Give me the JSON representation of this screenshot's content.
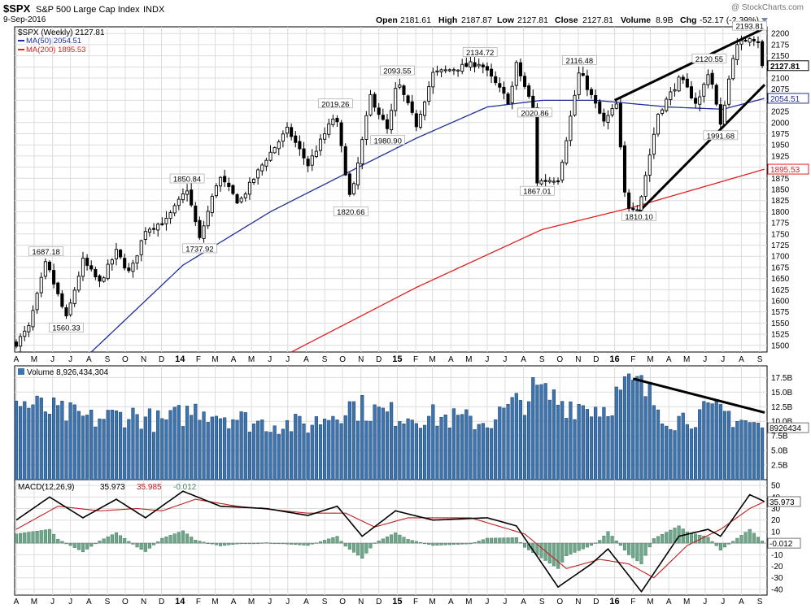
{
  "header": {
    "symbol": "$SPX",
    "name": "S&P 500 Large Cap Index",
    "exchange": "INDX",
    "date": "9-Sep-2016",
    "watermark": "@ StockCharts.com",
    "quote": {
      "open_label": "Open",
      "open": "2181.61",
      "high_label": "High",
      "high": "2187.87",
      "low_label": "Low",
      "low": "2127.81",
      "close_label": "Close",
      "close": "2127.81",
      "volume_label": "Volume",
      "volume": "8.9B",
      "chg_label": "Chg",
      "chg": "-52.17 (-2.39%)"
    }
  },
  "legend": {
    "main": "$SPX (Weekly) 2127.81",
    "ma50": "MA(50) 2054.51",
    "ma200": "MA(200) 1895.53"
  },
  "colors": {
    "grid": "#dcdcdc",
    "price": "#000000",
    "ma50": "#1f2f9a",
    "ma200": "#e02020",
    "volume": "#3c74b0",
    "macd": "#000000",
    "signal": "#c02020",
    "histogram": "#6ea88a",
    "trendline": "#000000"
  },
  "chart_data": [
    {
      "type": "candlestick",
      "title": "$SPX (Weekly) 2127.81",
      "y_ticks": [
        "1500",
        "1525",
        "1550",
        "1575",
        "1600",
        "1625",
        "1650",
        "1675",
        "1700",
        "1725",
        "1750",
        "1775",
        "1800",
        "1825",
        "1850",
        "1875",
        "1900",
        "1925",
        "1950",
        "1975",
        "2000",
        "2025",
        "2050",
        "2075",
        "2100",
        "2125",
        "2150",
        "2175",
        "2200"
      ],
      "ylim": [
        1485,
        2215
      ],
      "x_period": [
        "2013-04-01",
        "2016-09-09"
      ],
      "price_anchors": [
        {
          "d": "2013-04-01",
          "v": 1505
        },
        {
          "d": "2013-04-22",
          "v": 1540
        },
        {
          "d": "2013-05-21",
          "v": 1687.18
        },
        {
          "d": "2013-06-24",
          "v": 1560.33
        },
        {
          "d": "2013-07-22",
          "v": 1690
        },
        {
          "d": "2013-08-19",
          "v": 1640
        },
        {
          "d": "2013-09-16",
          "v": 1710
        },
        {
          "d": "2013-10-09",
          "v": 1660
        },
        {
          "d": "2013-11-04",
          "v": 1760
        },
        {
          "d": "2013-12-09",
          "v": 1780
        },
        {
          "d": "2014-01-13",
          "v": 1850.84
        },
        {
          "d": "2014-02-03",
          "v": 1737.92
        },
        {
          "d": "2014-03-07",
          "v": 1880
        },
        {
          "d": "2014-04-10",
          "v": 1820
        },
        {
          "d": "2014-05-26",
          "v": 1920
        },
        {
          "d": "2014-07-01",
          "v": 1985
        },
        {
          "d": "2014-08-04",
          "v": 1905
        },
        {
          "d": "2014-09-19",
          "v": 2019.26
        },
        {
          "d": "2014-10-15",
          "v": 1820.66
        },
        {
          "d": "2014-11-17",
          "v": 2060
        },
        {
          "d": "2014-12-16",
          "v": 1980.9
        },
        {
          "d": "2015-01-01",
          "v": 2093.55
        },
        {
          "d": "2015-02-02",
          "v": 1995
        },
        {
          "d": "2015-03-02",
          "v": 2110
        },
        {
          "d": "2015-05-20",
          "v": 2134.72
        },
        {
          "d": "2015-07-08",
          "v": 2045
        },
        {
          "d": "2015-07-20",
          "v": 2130
        },
        {
          "d": "2015-08-20",
          "v": 2020.86
        },
        {
          "d": "2015-08-24",
          "v": 1867.01
        },
        {
          "d": "2015-09-29",
          "v": 1875
        },
        {
          "d": "2015-11-03",
          "v": 2116.48
        },
        {
          "d": "2015-12-14",
          "v": 2000
        },
        {
          "d": "2016-01-04",
          "v": 2040
        },
        {
          "d": "2016-01-20",
          "v": 1812
        },
        {
          "d": "2016-02-11",
          "v": 1810.1
        },
        {
          "d": "2016-03-14",
          "v": 2020
        },
        {
          "d": "2016-04-20",
          "v": 2100
        },
        {
          "d": "2016-05-19",
          "v": 2040
        },
        {
          "d": "2016-06-08",
          "v": 2120.55
        },
        {
          "d": "2016-06-27",
          "v": 1991.68
        },
        {
          "d": "2016-07-20",
          "v": 2165
        },
        {
          "d": "2016-08-15",
          "v": 2193.81
        },
        {
          "d": "2016-09-02",
          "v": 2180
        },
        {
          "d": "2016-09-09",
          "v": 2127.81
        }
      ],
      "annotations": [
        {
          "d": "2013-05-21",
          "v": 1687.18,
          "text": "1687.18",
          "pos": "above"
        },
        {
          "d": "2013-06-24",
          "v": 1560.33,
          "text": "1560.33",
          "pos": "below"
        },
        {
          "d": "2014-01-13",
          "v": 1850.84,
          "text": "1850.84",
          "pos": "above"
        },
        {
          "d": "2014-02-03",
          "v": 1737.92,
          "text": "1737.92",
          "pos": "below"
        },
        {
          "d": "2014-09-19",
          "v": 2019.26,
          "text": "2019.26",
          "pos": "above"
        },
        {
          "d": "2014-10-15",
          "v": 1820.66,
          "text": "1820.66",
          "pos": "below"
        },
        {
          "d": "2014-12-16",
          "v": 1980.9,
          "text": "1980.90",
          "pos": "below"
        },
        {
          "d": "2015-01-01",
          "v": 2093.55,
          "text": "2093.55",
          "pos": "above"
        },
        {
          "d": "2015-05-20",
          "v": 2134.72,
          "text": "2134.72",
          "pos": "above"
        },
        {
          "d": "2015-08-20",
          "v": 2020.86,
          "text": "2020.86",
          "pos": "inline"
        },
        {
          "d": "2015-08-24",
          "v": 1867.01,
          "text": "1867.01",
          "pos": "below"
        },
        {
          "d": "2015-11-03",
          "v": 2116.48,
          "text": "2116.48",
          "pos": "above"
        },
        {
          "d": "2016-02-11",
          "v": 1810.1,
          "text": "1810.10",
          "pos": "below"
        },
        {
          "d": "2016-06-08",
          "v": 2120.55,
          "text": "2120.55",
          "pos": "above"
        },
        {
          "d": "2016-06-27",
          "v": 1991.68,
          "text": "1991.68",
          "pos": "below"
        },
        {
          "d": "2016-08-15",
          "v": 2193.81,
          "text": "2193.81",
          "pos": "above"
        }
      ],
      "ma50_anchors": [
        {
          "d": "2013-08-05",
          "v": 1485
        },
        {
          "d": "2014-01-06",
          "v": 1680
        },
        {
          "d": "2014-06-02",
          "v": 1800
        },
        {
          "d": "2014-10-13",
          "v": 1890
        },
        {
          "d": "2015-02-02",
          "v": 1965
        },
        {
          "d": "2015-06-01",
          "v": 2035
        },
        {
          "d": "2015-09-01",
          "v": 2050
        },
        {
          "d": "2015-12-01",
          "v": 2050
        },
        {
          "d": "2016-04-01",
          "v": 2035
        },
        {
          "d": "2016-07-01",
          "v": 2030
        },
        {
          "d": "2016-09-09",
          "v": 2054.51
        }
      ],
      "ma200_anchors": [
        {
          "d": "2014-07-07",
          "v": 1485
        },
        {
          "d": "2015-02-02",
          "v": 1630
        },
        {
          "d": "2015-09-01",
          "v": 1760
        },
        {
          "d": "2016-02-01",
          "v": 1810
        },
        {
          "d": "2016-09-09",
          "v": 1895.53
        }
      ],
      "last_price_labels": [
        {
          "v": 2127.81,
          "text": "2127.81",
          "style": "bold"
        },
        {
          "v": 2054.51,
          "text": "2054.51",
          "style": "blue"
        },
        {
          "v": 1895.53,
          "text": "1895.53",
          "style": "red"
        }
      ],
      "trendlines": [
        {
          "from": {
            "d": "2016-01-01",
            "v": 2050
          },
          "to": {
            "d": "2016-09-09",
            "v": 2212
          }
        },
        {
          "from": {
            "d": "2016-02-11",
            "v": 1800
          },
          "to": {
            "d": "2016-09-09",
            "v": 2085
          }
        }
      ]
    },
    {
      "type": "bar",
      "title": "Volume 8,926,434,304",
      "y_ticks": [
        "2.5B",
        "5.0B",
        "7.5B",
        "10.0B",
        "12.5B",
        "15.0B",
        "17.5B"
      ],
      "ylim": [
        0,
        19.5
      ],
      "y_unit": "B",
      "last_value_label": "8926434",
      "volume_anchors": [
        {
          "d": "2013-04-01",
          "v": 13.5
        },
        {
          "d": "2013-06-03",
          "v": 12.0
        },
        {
          "d": "2013-08-05",
          "v": 10.5
        },
        {
          "d": "2013-10-07",
          "v": 11.5
        },
        {
          "d": "2013-12-02",
          "v": 10.0
        },
        {
          "d": "2014-02-03",
          "v": 12.5
        },
        {
          "d": "2014-05-05",
          "v": 10.0
        },
        {
          "d": "2014-08-04",
          "v": 9.5
        },
        {
          "d": "2014-10-13",
          "v": 13.0
        },
        {
          "d": "2014-12-15",
          "v": 11.5
        },
        {
          "d": "2015-03-02",
          "v": 11.0
        },
        {
          "d": "2015-06-01",
          "v": 10.0
        },
        {
          "d": "2015-08-24",
          "v": 15.5
        },
        {
          "d": "2015-10-05",
          "v": 13.5
        },
        {
          "d": "2015-12-14",
          "v": 12.5
        },
        {
          "d": "2016-01-18",
          "v": 16.0
        },
        {
          "d": "2016-02-11",
          "v": 16.5
        },
        {
          "d": "2016-04-04",
          "v": 10.5
        },
        {
          "d": "2016-06-27",
          "v": 12.0
        },
        {
          "d": "2016-09-09",
          "v": 8.9
        }
      ],
      "trendline": {
        "from": {
          "d": "2016-02-01",
          "v": 17.3
        },
        "to": {
          "d": "2016-09-09",
          "v": 11.5
        }
      }
    },
    {
      "type": "line",
      "title": "MACD(12,26,9)",
      "values_text": {
        "macd": "35.973",
        "signal": "35.985",
        "hist": "-0.012"
      },
      "y_ticks": [
        "-40",
        "-30",
        "-20",
        "-10",
        "0",
        "10",
        "20",
        "30",
        "40",
        "50"
      ],
      "ylim": [
        -45,
        55
      ],
      "last_value_labels": [
        "35.973",
        "-0.012"
      ],
      "macd_anchors": [
        {
          "d": "2013-04-01",
          "v": 20
        },
        {
          "d": "2013-05-27",
          "v": 40
        },
        {
          "d": "2013-07-22",
          "v": 22
        },
        {
          "d": "2013-09-16",
          "v": 38
        },
        {
          "d": "2013-11-04",
          "v": 22
        },
        {
          "d": "2014-01-06",
          "v": 45
        },
        {
          "d": "2014-03-10",
          "v": 32
        },
        {
          "d": "2014-05-26",
          "v": 30
        },
        {
          "d": "2014-08-04",
          "v": 24
        },
        {
          "d": "2014-09-22",
          "v": 32
        },
        {
          "d": "2014-11-03",
          "v": 6
        },
        {
          "d": "2014-12-29",
          "v": 28
        },
        {
          "d": "2015-03-02",
          "v": 20
        },
        {
          "d": "2015-06-01",
          "v": 22
        },
        {
          "d": "2015-07-20",
          "v": 15
        },
        {
          "d": "2015-09-28",
          "v": -38
        },
        {
          "d": "2015-11-23",
          "v": -18
        },
        {
          "d": "2015-12-21",
          "v": -5
        },
        {
          "d": "2016-02-15",
          "v": -42
        },
        {
          "d": "2016-04-18",
          "v": 6
        },
        {
          "d": "2016-06-06",
          "v": 12
        },
        {
          "d": "2016-06-27",
          "v": 6
        },
        {
          "d": "2016-08-15",
          "v": 42
        },
        {
          "d": "2016-09-09",
          "v": 36
        }
      ],
      "signal_anchors": [
        {
          "d": "2013-04-01",
          "v": 12
        },
        {
          "d": "2013-06-10",
          "v": 32
        },
        {
          "d": "2013-08-19",
          "v": 28
        },
        {
          "d": "2013-10-21",
          "v": 30
        },
        {
          "d": "2013-12-02",
          "v": 28
        },
        {
          "d": "2014-01-27",
          "v": 38
        },
        {
          "d": "2014-04-07",
          "v": 32
        },
        {
          "d": "2014-08-04",
          "v": 26
        },
        {
          "d": "2014-10-06",
          "v": 26
        },
        {
          "d": "2014-11-24",
          "v": 14
        },
        {
          "d": "2015-01-19",
          "v": 22
        },
        {
          "d": "2015-05-04",
          "v": 22
        },
        {
          "d": "2015-08-03",
          "v": 8
        },
        {
          "d": "2015-10-12",
          "v": -22
        },
        {
          "d": "2015-12-07",
          "v": -14
        },
        {
          "d": "2016-01-25",
          "v": -18
        },
        {
          "d": "2016-03-07",
          "v": -30
        },
        {
          "d": "2016-05-02",
          "v": -2
        },
        {
          "d": "2016-06-27",
          "v": 12
        },
        {
          "d": "2016-08-15",
          "v": 30
        },
        {
          "d": "2016-09-09",
          "v": 36
        }
      ]
    }
  ],
  "x_axis": {
    "labels": [
      {
        "d": "2013-04-01",
        "t": "A"
      },
      {
        "d": "2013-05-01",
        "t": "M"
      },
      {
        "d": "2013-06-01",
        "t": "J"
      },
      {
        "d": "2013-07-01",
        "t": "J"
      },
      {
        "d": "2013-08-01",
        "t": "A"
      },
      {
        "d": "2013-09-01",
        "t": "S"
      },
      {
        "d": "2013-10-01",
        "t": "O"
      },
      {
        "d": "2013-11-01",
        "t": "N"
      },
      {
        "d": "2013-12-01",
        "t": "D"
      },
      {
        "d": "2014-01-01",
        "t": "14",
        "year": true
      },
      {
        "d": "2014-02-01",
        "t": "F"
      },
      {
        "d": "2014-03-01",
        "t": "M"
      },
      {
        "d": "2014-04-01",
        "t": "A"
      },
      {
        "d": "2014-05-01",
        "t": "M"
      },
      {
        "d": "2014-06-01",
        "t": "J"
      },
      {
        "d": "2014-07-01",
        "t": "J"
      },
      {
        "d": "2014-08-01",
        "t": "A"
      },
      {
        "d": "2014-09-01",
        "t": "S"
      },
      {
        "d": "2014-10-01",
        "t": "O"
      },
      {
        "d": "2014-11-01",
        "t": "N"
      },
      {
        "d": "2014-12-01",
        "t": "D"
      },
      {
        "d": "2015-01-01",
        "t": "15",
        "year": true
      },
      {
        "d": "2015-02-01",
        "t": "F"
      },
      {
        "d": "2015-03-01",
        "t": "M"
      },
      {
        "d": "2015-04-01",
        "t": "A"
      },
      {
        "d": "2015-05-01",
        "t": "M"
      },
      {
        "d": "2015-06-01",
        "t": "J"
      },
      {
        "d": "2015-07-01",
        "t": "J"
      },
      {
        "d": "2015-08-01",
        "t": "A"
      },
      {
        "d": "2015-09-01",
        "t": "S"
      },
      {
        "d": "2015-10-01",
        "t": "O"
      },
      {
        "d": "2015-11-01",
        "t": "N"
      },
      {
        "d": "2015-12-01",
        "t": "D"
      },
      {
        "d": "2016-01-01",
        "t": "16",
        "year": true
      },
      {
        "d": "2016-02-01",
        "t": "F"
      },
      {
        "d": "2016-03-01",
        "t": "M"
      },
      {
        "d": "2016-04-01",
        "t": "A"
      },
      {
        "d": "2016-05-01",
        "t": "M"
      },
      {
        "d": "2016-06-01",
        "t": "J"
      },
      {
        "d": "2016-07-01",
        "t": "J"
      },
      {
        "d": "2016-08-01",
        "t": "A"
      },
      {
        "d": "2016-09-01",
        "t": "S"
      }
    ]
  }
}
